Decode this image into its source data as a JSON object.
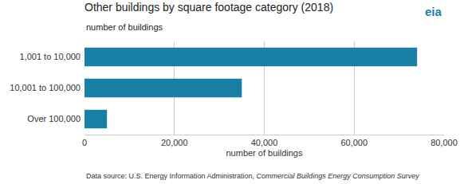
{
  "chart_data": {
    "type": "bar",
    "orientation": "horizontal",
    "title": "Other buildings by square footage category (2018)",
    "subtitle": "number of buildings",
    "xlabel": "number of buildings",
    "categories": [
      "1,001 to 10,000",
      "10,001 to 100,000",
      "Over 100,000"
    ],
    "values": [
      74000,
      35000,
      5000
    ],
    "color": "#1a7fa4",
    "xlim": [
      0,
      80000
    ],
    "xticks": [
      0,
      {
        "value": 20000,
        "label": "20,000"
      },
      {
        "value": 40000,
        "label": "40,000"
      },
      {
        "value": 60000,
        "label": "60,000"
      },
      {
        "value": 80000,
        "label": "80,000"
      }
    ],
    "grid": true,
    "annotations": [
      "eia",
      "Data source: U.S. Energy Information Administration,",
      "Commercial Buildings Energy Consumption Survey"
    ]
  }
}
